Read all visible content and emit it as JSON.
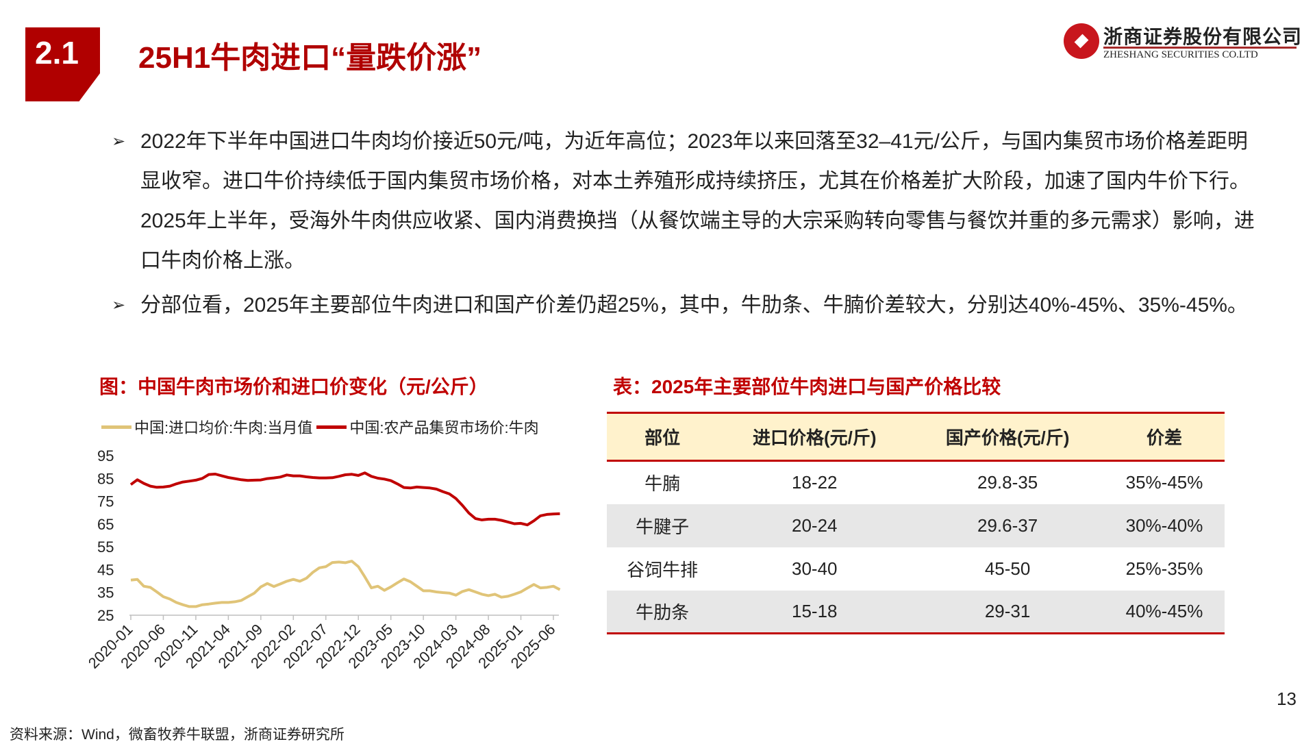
{
  "header": {
    "section": "2.1",
    "title": "25H1牛肉进口“量跌价涨”",
    "logo_cn": "浙商证券股份有限公司",
    "logo_en": "ZHESHANG SECURITIES CO.LTD"
  },
  "bullets": [
    "2022年下半年中国进口牛肉均价接近50元/吨，为近年高位；2023年以来回落至32–41元/公斤，与国内集贸市场价格差距明显收窄。进口牛价持续低于国内集贸市场价格，对本土养殖形成持续挤压，尤其在价格差扩大阶段，加速了国内牛价下行。2025年上半年，受海外牛肉供应收紧、国内消费换挡（从餐饮端主导的大宗采购转向零售与餐饮并重的多元需求）影响，进口牛肉价格上涨。",
    "分部位看，2025年主要部位牛肉进口和国产价差仍超25%，其中，牛肋条、牛腩价差较大，分别达40%-45%、35%-45%。"
  ],
  "chart_caption": "图：中国牛肉市场价和进口价变化（元/公斤）",
  "table_caption": "表：2025年主要部位牛肉进口与国产价格比较",
  "chart_data": {
    "type": "line",
    "title": "中国牛肉市场价和进口价变化（元/公斤）",
    "ylim": [
      25,
      95
    ],
    "yticks": [
      "95",
      "85",
      "75",
      "65",
      "55",
      "45",
      "35",
      "25"
    ],
    "xticks": [
      "2020-01",
      "2020-06",
      "2020-11",
      "2021-04",
      "2021-09",
      "2022-02",
      "2022-07",
      "2022-12",
      "2023-05",
      "2023-10",
      "2024-03",
      "2024-08",
      "2025-01",
      "2025-06"
    ],
    "x_start": "2020-01",
    "x_step": "month",
    "legend": "top",
    "series": [
      {
        "name": "中国:进口均价:牛肉:当月值",
        "color": "#e0c478",
        "values": [
          40.4,
          40.7,
          37.7,
          37.2,
          35.2,
          33.1,
          32.1,
          30.6,
          29.6,
          28.8,
          28.8,
          29.6,
          29.9,
          30.3,
          30.6,
          30.6,
          30.9,
          31.5,
          33.1,
          34.7,
          37.4,
          38.9,
          37.6,
          38.7,
          39.9,
          40.7,
          39.9,
          41.2,
          43.8,
          45.8,
          46.3,
          48.1,
          48.3,
          48.0,
          48.7,
          46.3,
          41.8,
          37.0,
          37.7,
          35.9,
          37.4,
          39.2,
          40.9,
          39.7,
          37.7,
          35.7,
          35.7,
          35.2,
          34.9,
          34.7,
          33.8,
          35.4,
          36.2,
          35.2,
          34.2,
          33.6,
          34.2,
          32.9,
          33.3,
          34.2,
          35.2,
          36.9,
          38.5,
          37.0,
          37.2,
          37.7,
          36.2
        ]
      },
      {
        "name": "中国:农产品集贸市场价:牛肉",
        "color": "#c00000",
        "values": [
          82.3,
          84.4,
          82.8,
          81.6,
          81.1,
          81.2,
          81.6,
          82.6,
          83.4,
          83.8,
          84.2,
          85.0,
          86.7,
          86.9,
          86.1,
          85.4,
          84.9,
          84.4,
          84.1,
          84.2,
          84.3,
          84.9,
          85.2,
          85.6,
          86.5,
          86.1,
          86.1,
          85.7,
          85.4,
          85.2,
          85.2,
          85.3,
          85.9,
          86.6,
          86.8,
          86.3,
          87.4,
          85.9,
          85.1,
          84.7,
          84.0,
          82.6,
          81.0,
          80.8,
          81.2,
          81.0,
          80.8,
          80.3,
          79.2,
          78.2,
          76.2,
          73.2,
          69.8,
          67.4,
          66.8,
          67.1,
          67.1,
          66.6,
          65.9,
          65.1,
          65.3,
          64.6,
          66.4,
          68.6,
          69.2,
          69.4,
          69.5
        ]
      }
    ]
  },
  "table": {
    "headers": [
      "部位",
      "进口价格(元/斤)",
      "国产价格(元/斤)",
      "价差"
    ],
    "rows": [
      [
        "牛腩",
        "18-22",
        "29.8-35",
        "35%-45%"
      ],
      [
        "牛腱子",
        "20-24",
        "29.6-37",
        "30%-40%"
      ],
      [
        "谷饲牛排",
        "30-40",
        "45-50",
        "25%-35%"
      ],
      [
        "牛肋条",
        "15-18",
        "29-31",
        "40%-45%"
      ]
    ]
  },
  "page_number": "13",
  "source": "资料来源：Wind，微畜牧养牛联盟，浙商证券研究所"
}
